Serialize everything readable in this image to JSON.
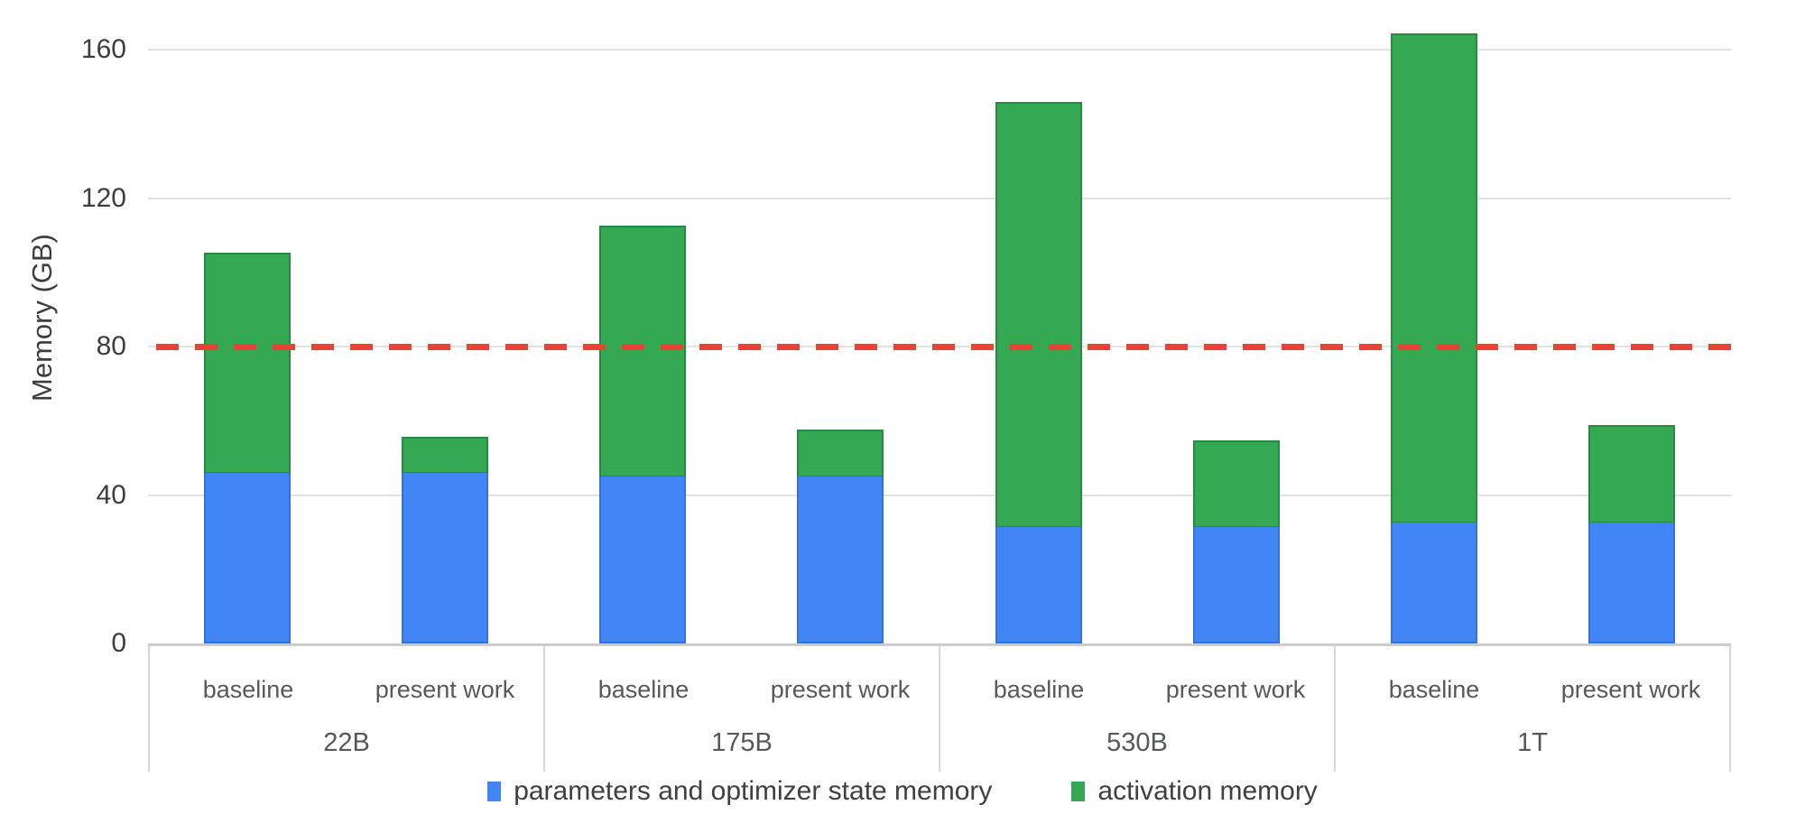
{
  "chart_data": {
    "type": "bar",
    "stacked": true,
    "ylabel": "Memory (GB)",
    "yticks": [
      0,
      40,
      80,
      120,
      160
    ],
    "ylim": [
      0,
      173.4
    ],
    "grid": true,
    "legend_position": "bottom",
    "groups": [
      "22B",
      "175B",
      "530B",
      "1T"
    ],
    "variants": [
      "baseline",
      "present work"
    ],
    "series": [
      {
        "name": "parameters and optimizer state memory",
        "color": "#4285f4",
        "values": [
          45.9,
          45.9,
          45.1,
          45.1,
          31.4,
          31.4,
          32.5,
          32.5
        ]
      },
      {
        "name": "activation memory",
        "color": "#34a853",
        "values": [
          59.3,
          9.7,
          67.4,
          12.6,
          114.5,
          23.4,
          131.9,
          26.4
        ]
      }
    ],
    "totals": [
      105.2,
      55.6,
      112.5,
      57.7,
      145.9,
      54.8,
      164.4,
      58.9
    ],
    "reference_line": {
      "value": 80,
      "color": "#ea4335",
      "style": "dashed"
    },
    "colors": {
      "gridline": "#e2e2e2",
      "axis_line": "#cccccc",
      "tick_text": "#3d3d3d",
      "category_text": "#55585c"
    }
  }
}
